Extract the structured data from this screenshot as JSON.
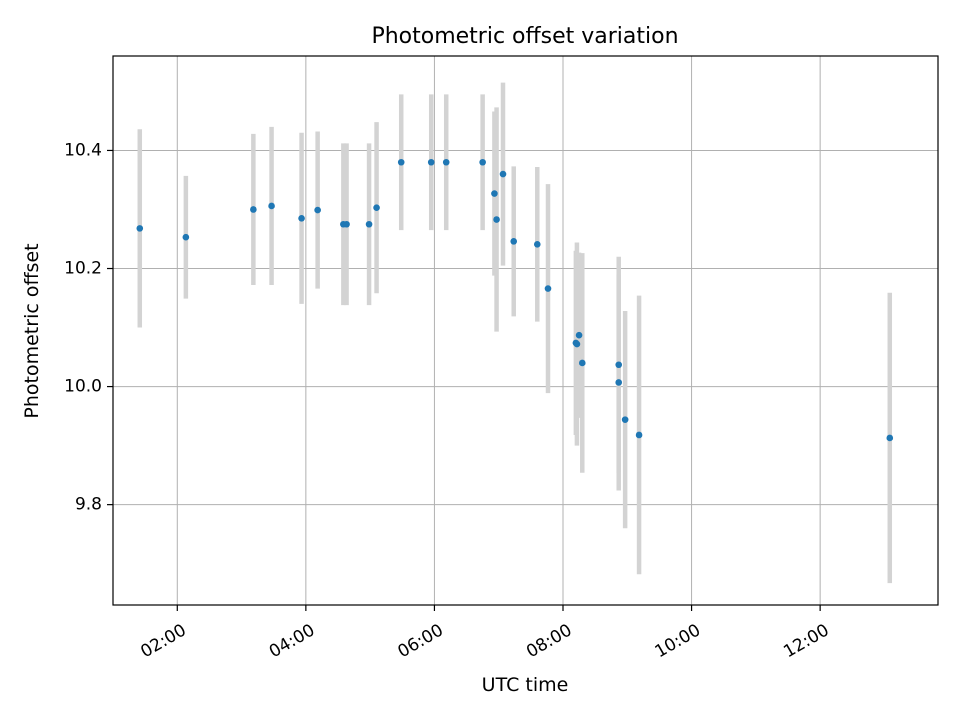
{
  "chart_data": {
    "type": "scatter",
    "title": "Photometric offset variation",
    "xlabel": "UTC time",
    "ylabel": "Photometric offset",
    "x_is_time": true,
    "xlim": [
      "01:00",
      "13:50"
    ],
    "ylim": [
      9.63,
      10.56
    ],
    "x_ticks": [
      "02:00",
      "04:00",
      "06:00",
      "08:00",
      "10:00",
      "12:00"
    ],
    "y_ticks": [
      "9.8",
      "10.0",
      "10.2",
      "10.4"
    ],
    "grid": true,
    "colors": {
      "point": "#1f77b4",
      "errorbar": "#d3d3d3",
      "grid": "#b0b0b0"
    },
    "points": [
      {
        "x": "01:25",
        "y": 10.268,
        "err": 0.168
      },
      {
        "x": "02:08",
        "y": 10.253,
        "err": 0.104
      },
      {
        "x": "03:11",
        "y": 10.3,
        "err": 0.128
      },
      {
        "x": "03:28",
        "y": 10.306,
        "err": 0.134
      },
      {
        "x": "03:56",
        "y": 10.285,
        "err": 0.145
      },
      {
        "x": "04:11",
        "y": 10.299,
        "err": 0.133
      },
      {
        "x": "04:35",
        "y": 10.275,
        "err": 0.137
      },
      {
        "x": "04:38",
        "y": 10.275,
        "err": 0.137
      },
      {
        "x": "04:59",
        "y": 10.275,
        "err": 0.137
      },
      {
        "x": "05:06",
        "y": 10.303,
        "err": 0.145
      },
      {
        "x": "05:29",
        "y": 10.38,
        "err": 0.115
      },
      {
        "x": "05:57",
        "y": 10.38,
        "err": 0.115
      },
      {
        "x": "06:11",
        "y": 10.38,
        "err": 0.115
      },
      {
        "x": "06:45",
        "y": 10.38,
        "err": 0.115
      },
      {
        "x": "06:56",
        "y": 10.327,
        "err": 0.139
      },
      {
        "x": "06:58",
        "y": 10.283,
        "err": 0.19
      },
      {
        "x": "07:04",
        "y": 10.36,
        "err": 0.155
      },
      {
        "x": "07:14",
        "y": 10.246,
        "err": 0.127
      },
      {
        "x": "07:36",
        "y": 10.241,
        "err": 0.131
      },
      {
        "x": "07:46",
        "y": 10.166,
        "err": 0.177
      },
      {
        "x": "08:12",
        "y": 10.074,
        "err": 0.156
      },
      {
        "x": "08:13",
        "y": 10.072,
        "err": 0.172
      },
      {
        "x": "08:15",
        "y": 10.087,
        "err": 0.14
      },
      {
        "x": "08:18",
        "y": 10.04,
        "err": 0.186
      },
      {
        "x": "08:52",
        "y": 10.037,
        "err": 0.183
      },
      {
        "x": "08:52",
        "y": 10.007,
        "err": 0.183
      },
      {
        "x": "08:58",
        "y": 9.944,
        "err": 0.184
      },
      {
        "x": "09:11",
        "y": 9.918,
        "err": 0.236
      },
      {
        "x": "13:05",
        "y": 9.913,
        "err": 0.246
      }
    ]
  }
}
